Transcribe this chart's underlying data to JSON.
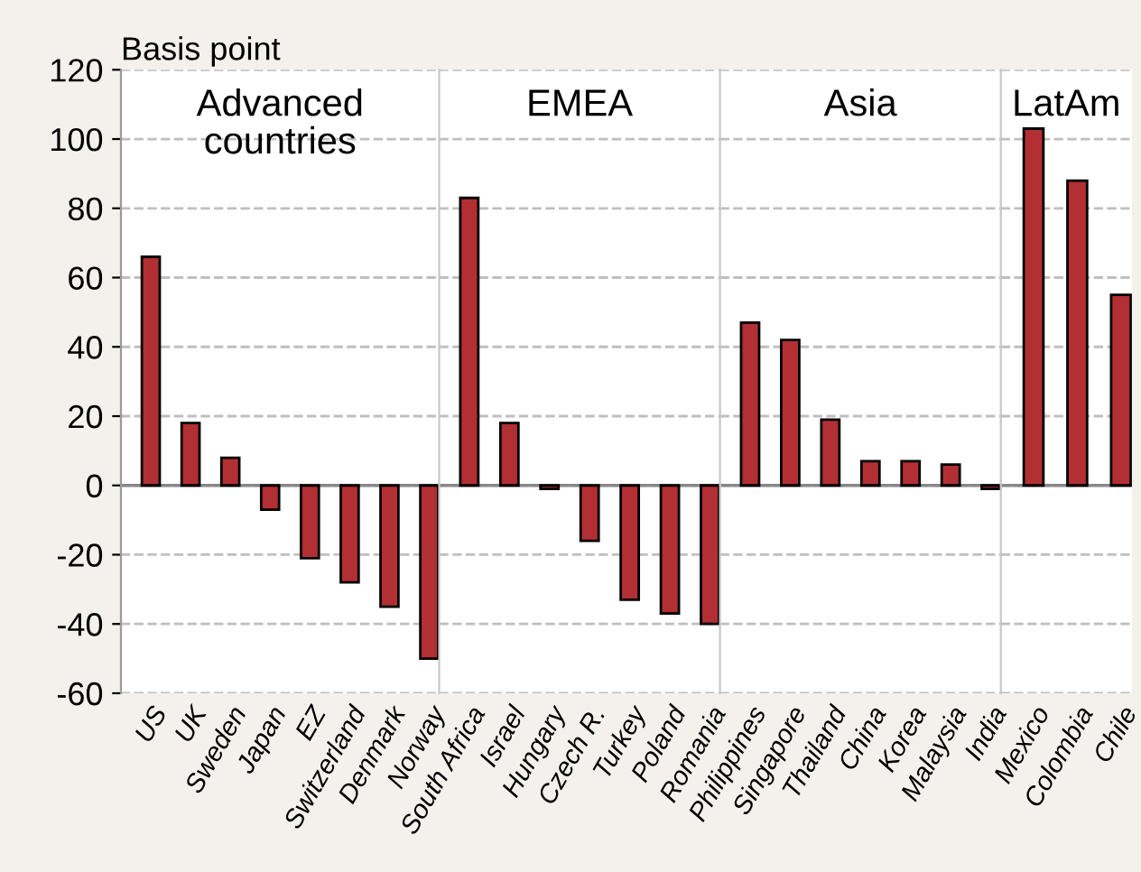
{
  "chart_data": [
    {
      "type": "bar",
      "title": "Advanced countries",
      "ylabel": "Basis point",
      "categories": [
        "US",
        "UK",
        "Sweden",
        "Japan",
        "EZ",
        "Switzerland",
        "Denmark",
        "Norway"
      ],
      "values": [
        66,
        18,
        8,
        -7,
        -21,
        -28,
        -35,
        -50
      ],
      "color": "#b22f33",
      "ylim": [
        -60,
        120
      ],
      "yticks": [
        -60,
        -40,
        -20,
        0,
        20,
        40,
        60,
        80,
        100,
        120
      ],
      "grid": "y"
    },
    {
      "type": "bar",
      "title": "EMEA",
      "categories": [
        "South Africa",
        "Israel",
        "Hungary",
        "Czech R.",
        "Turkey",
        "Poland",
        "Romania"
      ],
      "values": [
        83,
        18,
        -1,
        -16,
        -33,
        -37,
        -40
      ],
      "color": "#b22f33",
      "ylim": [
        -60,
        120
      ],
      "yticks": [
        -60,
        -40,
        -20,
        0,
        20,
        40,
        60,
        80,
        100,
        120
      ],
      "grid": "y",
      "tick_labels": "x"
    },
    {
      "type": "bar",
      "title": "Asia",
      "categories": [
        "Philippines",
        "Singapore",
        "Thailand",
        "China",
        "Korea",
        "Malaysia",
        "India"
      ],
      "values": [
        47,
        42,
        19,
        7,
        7,
        6,
        -1
      ],
      "color": "#b22f33",
      "ylim": [
        -60,
        120
      ],
      "yticks": [
        -60,
        -40,
        -20,
        0,
        20,
        40,
        60,
        80,
        100,
        120
      ],
      "grid": "y",
      "tick_labels": "x"
    },
    {
      "type": "bar",
      "title": "LatAm",
      "categories": [
        "Mexico",
        "Colombia",
        "Chile"
      ],
      "values": [
        103,
        88,
        55
      ],
      "color": "#b22f33",
      "ylim": [
        -60,
        120
      ],
      "yticks": [
        -60,
        -40,
        -20,
        0,
        20,
        40,
        60,
        80,
        100,
        120
      ],
      "grid": "y",
      "tick_labels": "x"
    }
  ]
}
